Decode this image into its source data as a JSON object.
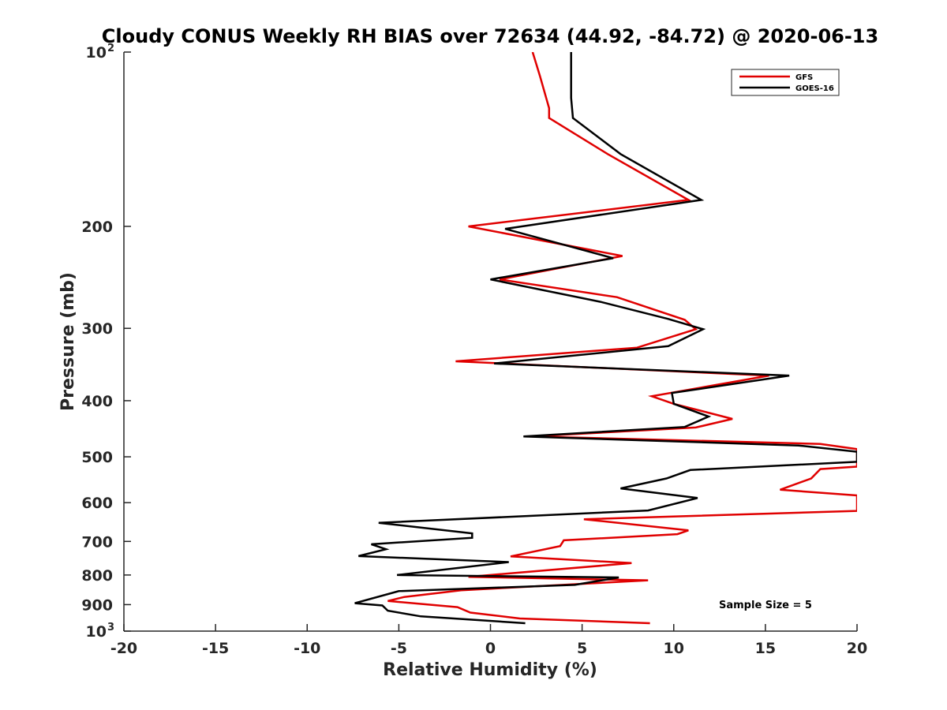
{
  "chart_data": {
    "type": "line",
    "title": "Cloudy CONUS Weekly RH BIAS over 72634 (44.92, -84.72) @ 2020-06-13",
    "xlabel": "Relative Humidity (%)",
    "ylabel": "Pressure (mb)",
    "xlim": [
      -20,
      20
    ],
    "ylim": [
      100,
      1000
    ],
    "yscale": "log",
    "y_reversed": true,
    "x_ticks": [
      {
        "value": -20,
        "label": "-20"
      },
      {
        "value": -15,
        "label": "-15"
      },
      {
        "value": -10,
        "label": "-10"
      },
      {
        "value": -5,
        "label": "-5"
      },
      {
        "value": 0,
        "label": "0"
      },
      {
        "value": 5,
        "label": "5"
      },
      {
        "value": 10,
        "label": "10"
      },
      {
        "value": 15,
        "label": "15"
      },
      {
        "value": 20,
        "label": "20"
      }
    ],
    "y_ticks": [
      {
        "value": 100,
        "base": "10",
        "exp": "2"
      },
      {
        "value": 200,
        "base": "200",
        "exp": ""
      },
      {
        "value": 300,
        "base": "300",
        "exp": ""
      },
      {
        "value": 400,
        "base": "400",
        "exp": ""
      },
      {
        "value": 500,
        "base": "500",
        "exp": ""
      },
      {
        "value": 600,
        "base": "600",
        "exp": ""
      },
      {
        "value": 700,
        "base": "700",
        "exp": ""
      },
      {
        "value": 800,
        "base": "800",
        "exp": ""
      },
      {
        "value": 900,
        "base": "900",
        "exp": ""
      },
      {
        "value": 1000,
        "base": "10",
        "exp": "3"
      }
    ],
    "grid": false,
    "legend_position": "top-right",
    "annotation": "Sample Size = 5",
    "series": [
      {
        "name": "GFS",
        "color": "#e00000",
        "points": [
          [
            2.3,
            100
          ],
          [
            2.7,
            110
          ],
          [
            3.2,
            125
          ],
          [
            3.2,
            130
          ],
          [
            6.4,
            150
          ],
          [
            10.8,
            180
          ],
          [
            -1.2,
            200
          ],
          [
            7.2,
            225
          ],
          [
            0.5,
            247
          ],
          [
            6.9,
            265
          ],
          [
            10.6,
            290
          ],
          [
            11.2,
            301
          ],
          [
            8.0,
            324
          ],
          [
            -1.9,
            342
          ],
          [
            15.2,
            362
          ],
          [
            8.8,
            393
          ],
          [
            10.0,
            405
          ],
          [
            13.2,
            430
          ],
          [
            11.2,
            445
          ],
          [
            2.2,
            461
          ],
          [
            18.0,
            475
          ],
          [
            20,
            485
          ],
          [
            20,
            520
          ],
          [
            18.0,
            525
          ],
          [
            17.5,
            545
          ],
          [
            15.8,
            570
          ],
          [
            20,
            583
          ],
          [
            20,
            620
          ],
          [
            5.1,
            641
          ],
          [
            10.8,
            670
          ],
          [
            10.2,
            680
          ],
          [
            4.0,
            697
          ],
          [
            3.8,
            713
          ],
          [
            1.1,
            743
          ],
          [
            7.7,
            763
          ],
          [
            -1.2,
            806
          ],
          [
            8.6,
            817
          ],
          [
            -1.6,
            850
          ],
          [
            -4.7,
            873
          ],
          [
            -5.6,
            887
          ],
          [
            -1.8,
            909
          ],
          [
            -1.1,
            929
          ],
          [
            1.6,
            951
          ],
          [
            8.7,
            969
          ]
        ]
      },
      {
        "name": "GOES-16",
        "color": "#000000",
        "points": [
          [
            4.4,
            100
          ],
          [
            4.4,
            120
          ],
          [
            4.5,
            130
          ],
          [
            7.1,
            150
          ],
          [
            11.5,
            180
          ],
          [
            0.8,
            202
          ],
          [
            6.7,
            227
          ],
          [
            0.0,
            247
          ],
          [
            6.0,
            270
          ],
          [
            9.7,
            289
          ],
          [
            11.6,
            301
          ],
          [
            9.7,
            322
          ],
          [
            0.2,
            345
          ],
          [
            16.3,
            362
          ],
          [
            9.9,
            388
          ],
          [
            10.0,
            405
          ],
          [
            11.9,
            426
          ],
          [
            10.6,
            444
          ],
          [
            1.8,
            461
          ],
          [
            16.8,
            478
          ],
          [
            20,
            490
          ],
          [
            20,
            510
          ],
          [
            10.9,
            527
          ],
          [
            9.6,
            545
          ],
          [
            7.1,
            567
          ],
          [
            11.3,
            589
          ],
          [
            8.6,
            619
          ],
          [
            -6.1,
            650
          ],
          [
            -1.0,
            678
          ],
          [
            -1.0,
            690
          ],
          [
            -6.5,
            708
          ],
          [
            -5.7,
            722
          ],
          [
            -7.2,
            742
          ],
          [
            1.0,
            760
          ],
          [
            -5.1,
            800
          ],
          [
            7.0,
            808
          ],
          [
            4.6,
            832
          ],
          [
            -5.0,
            853
          ],
          [
            -7.4,
            895
          ],
          [
            -5.9,
            903
          ],
          [
            -5.6,
            922
          ],
          [
            -3.8,
            943
          ],
          [
            1.9,
            969
          ]
        ]
      }
    ]
  }
}
